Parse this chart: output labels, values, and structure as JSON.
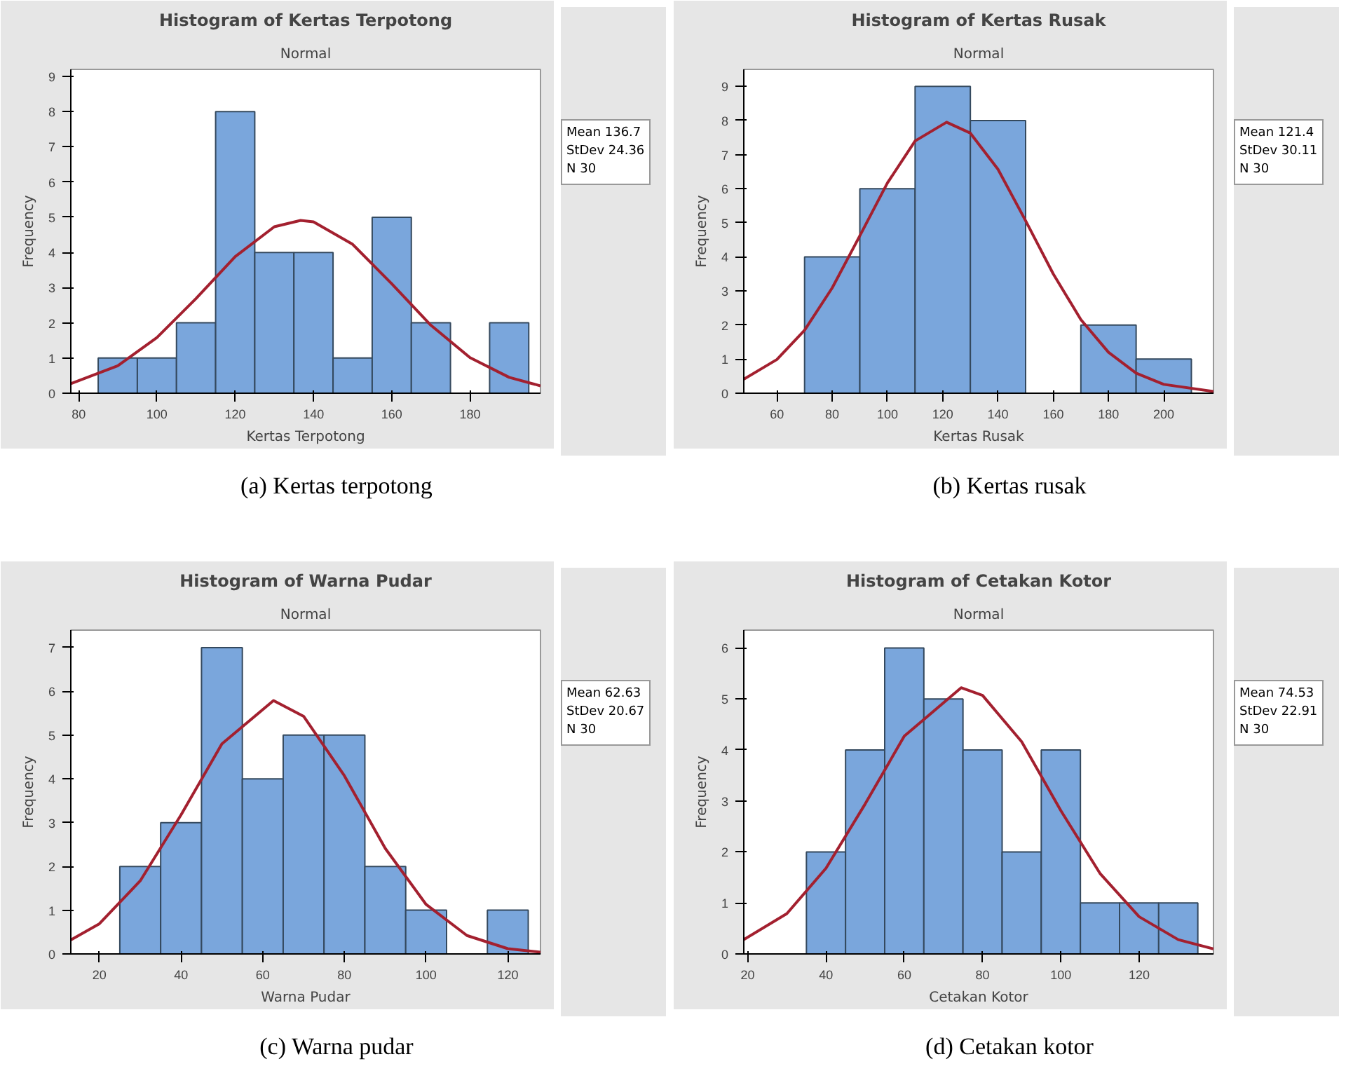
{
  "chart_data": [
    {
      "type": "histogram",
      "title": "Histogram of Kertas Terpotong",
      "subtitle": "Normal",
      "xlabel": "Kertas Terpotong",
      "ylabel": "Frequency",
      "color": "#7aa6dc",
      "bins": [
        85,
        95,
        105,
        115,
        125,
        135,
        145,
        155,
        165,
        175,
        185,
        195
      ],
      "values": [
        1,
        1,
        2,
        8,
        4,
        4,
        1,
        5,
        2,
        0,
        2
      ],
      "xlim": [
        78,
        198
      ],
      "ylim": [
        0,
        9.2
      ],
      "xticks": [
        80,
        100,
        120,
        140,
        160,
        180
      ],
      "yticks": [
        0,
        1,
        2,
        3,
        4,
        5,
        6,
        7,
        8,
        9
      ],
      "series": [
        {
          "type": "line",
          "color": "#a3202f",
          "x": [
            78,
            90,
            100,
            110,
            120,
            130,
            136.7,
            140,
            150,
            160,
            170,
            180,
            190,
            198
          ],
          "values": [
            0.27,
            0.78,
            1.58,
            2.69,
            3.88,
            4.73,
            4.91,
            4.87,
            4.23,
            3.11,
            1.93,
            1.01,
            0.45,
            0.21
          ]
        }
      ],
      "annotations": [
        "Mean 136.7",
        "StDev 24.36",
        "N 30",
        "(a)  Kertas terpotong"
      ]
    },
    {
      "type": "histogram",
      "title": "Histogram of Kertas Rusak",
      "subtitle": "Normal",
      "xlabel": "Kertas Rusak",
      "ylabel": "Frequency",
      "color": "#7aa6dc",
      "bins": [
        70,
        90,
        110,
        130,
        150,
        170,
        190,
        210
      ],
      "values": [
        4,
        6,
        9,
        8,
        0,
        2,
        1
      ],
      "xlim": [
        48,
        218
      ],
      "ylim": [
        0,
        9.5
      ],
      "xticks": [
        60,
        80,
        100,
        120,
        140,
        160,
        180,
        200
      ],
      "yticks": [
        0,
        1,
        2,
        3,
        4,
        5,
        6,
        7,
        8,
        9
      ],
      "series": [
        {
          "type": "line",
          "color": "#a3202f",
          "x": [
            48,
            60,
            70,
            80,
            90,
            100,
            110,
            121.4,
            130,
            140,
            150,
            160,
            170,
            180,
            190,
            200,
            218
          ],
          "values": [
            0.41,
            0.99,
            1.85,
            3.09,
            4.62,
            6.17,
            7.4,
            7.95,
            7.63,
            6.57,
            5.06,
            3.5,
            2.16,
            1.2,
            0.59,
            0.26,
            0.05
          ]
        }
      ],
      "annotations": [
        "Mean 121.4",
        "StDev 30.11",
        "N 30",
        "(b) Kertas rusak"
      ]
    },
    {
      "type": "histogram",
      "title": "Histogram of Warna Pudar",
      "subtitle": "Normal",
      "xlabel": "Warna Pudar",
      "ylabel": "Frequency",
      "color": "#7aa6dc",
      "bins": [
        25,
        35,
        45,
        55,
        65,
        75,
        85,
        95,
        105,
        115,
        125
      ],
      "values": [
        2,
        3,
        7,
        4,
        5,
        5,
        2,
        1,
        0,
        1
      ],
      "xlim": [
        13,
        128
      ],
      "ylim": [
        0,
        7.4
      ],
      "xticks": [
        20,
        40,
        60,
        80,
        100,
        120
      ],
      "yticks": [
        0,
        1,
        2,
        3,
        4,
        5,
        6,
        7
      ],
      "series": [
        {
          "type": "line",
          "color": "#a3202f",
          "x": [
            13,
            20,
            30,
            40,
            50,
            62.63,
            70,
            80,
            90,
            100,
            110,
            120,
            128
          ],
          "values": [
            0.32,
            0.69,
            1.67,
            3.18,
            4.8,
            5.79,
            5.43,
            4.07,
            2.41,
            1.13,
            0.42,
            0.12,
            0.04
          ]
        }
      ],
      "annotations": [
        "Mean 62.63",
        "StDev 20.67",
        "N 30",
        "(c)  Warna pudar"
      ]
    },
    {
      "type": "histogram",
      "title": "Histogram of Cetakan Kotor",
      "subtitle": "Normal",
      "xlabel": "Cetakan Kotor",
      "ylabel": "Frequency",
      "color": "#7aa6dc",
      "bins": [
        35,
        45,
        55,
        65,
        75,
        85,
        95,
        105,
        115,
        125,
        135
      ],
      "values": [
        2,
        4,
        6,
        5,
        4,
        2,
        4,
        1,
        1,
        1
      ],
      "xlim": [
        19,
        139
      ],
      "ylim": [
        0,
        6.35
      ],
      "xticks": [
        20,
        40,
        60,
        80,
        100,
        120
      ],
      "yticks": [
        0,
        1,
        2,
        3,
        4,
        5,
        6
      ],
      "series": [
        {
          "type": "line",
          "color": "#a3202f",
          "x": [
            19,
            30,
            40,
            50,
            60,
            74.53,
            80,
            90,
            100,
            110,
            120,
            130,
            139
          ],
          "values": [
            0.28,
            0.79,
            1.68,
            2.94,
            4.27,
            5.22,
            5.07,
            4.16,
            2.81,
            1.58,
            0.73,
            0.28,
            0.1
          ]
        }
      ],
      "annotations": [
        "Mean 74.53",
        "StDev 22.91",
        "N 30",
        "(d) Cetakan kotor"
      ]
    }
  ]
}
